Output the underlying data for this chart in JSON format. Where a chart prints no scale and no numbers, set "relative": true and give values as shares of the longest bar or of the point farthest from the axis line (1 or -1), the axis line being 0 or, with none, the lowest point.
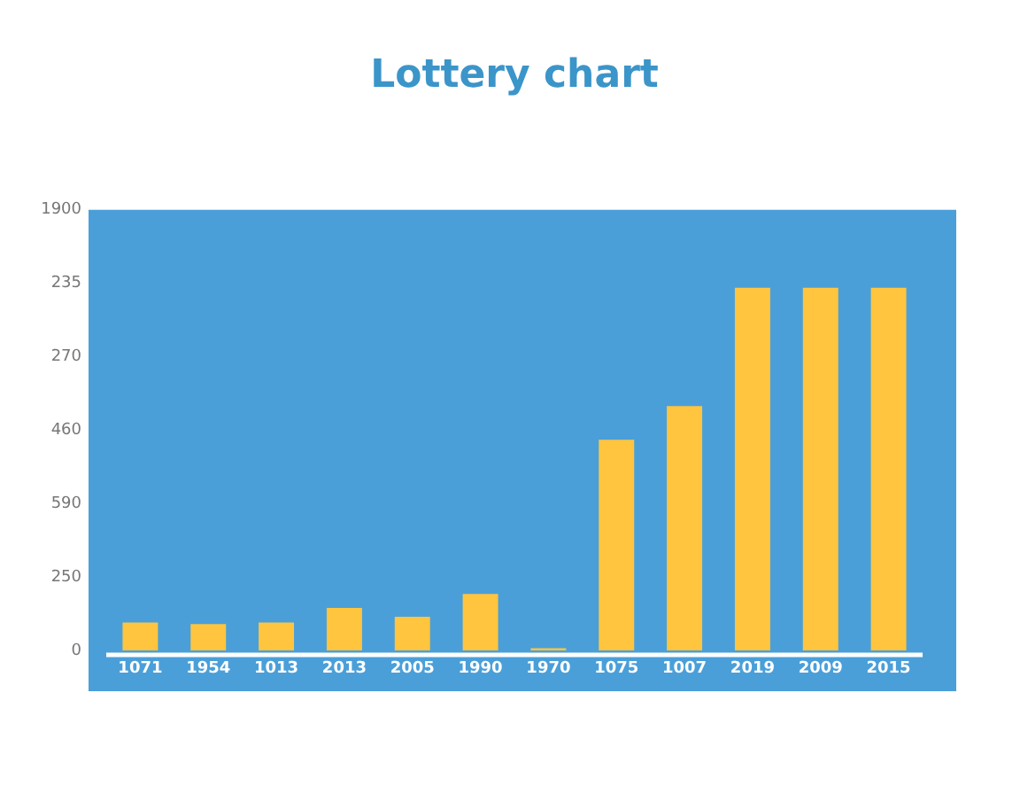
{
  "chart_data": {
    "type": "bar",
    "title": "Lottery chart",
    "categories": [
      "1071",
      "1954",
      "1013",
      "2013",
      "2005",
      "1990",
      "1970",
      "1075",
      "1007",
      "2019",
      "2009",
      "2015"
    ],
    "values": [
      0.077,
      0.073,
      0.077,
      0.117,
      0.093,
      0.156,
      0.006,
      0.581,
      0.674,
      1,
      1,
      1
    ],
    "relative": true,
    "color": "#ffc53f",
    "annotations": [
      "1900",
      "235",
      "270",
      "460",
      "590",
      "250",
      "0"
    ],
    "legend": false
  }
}
